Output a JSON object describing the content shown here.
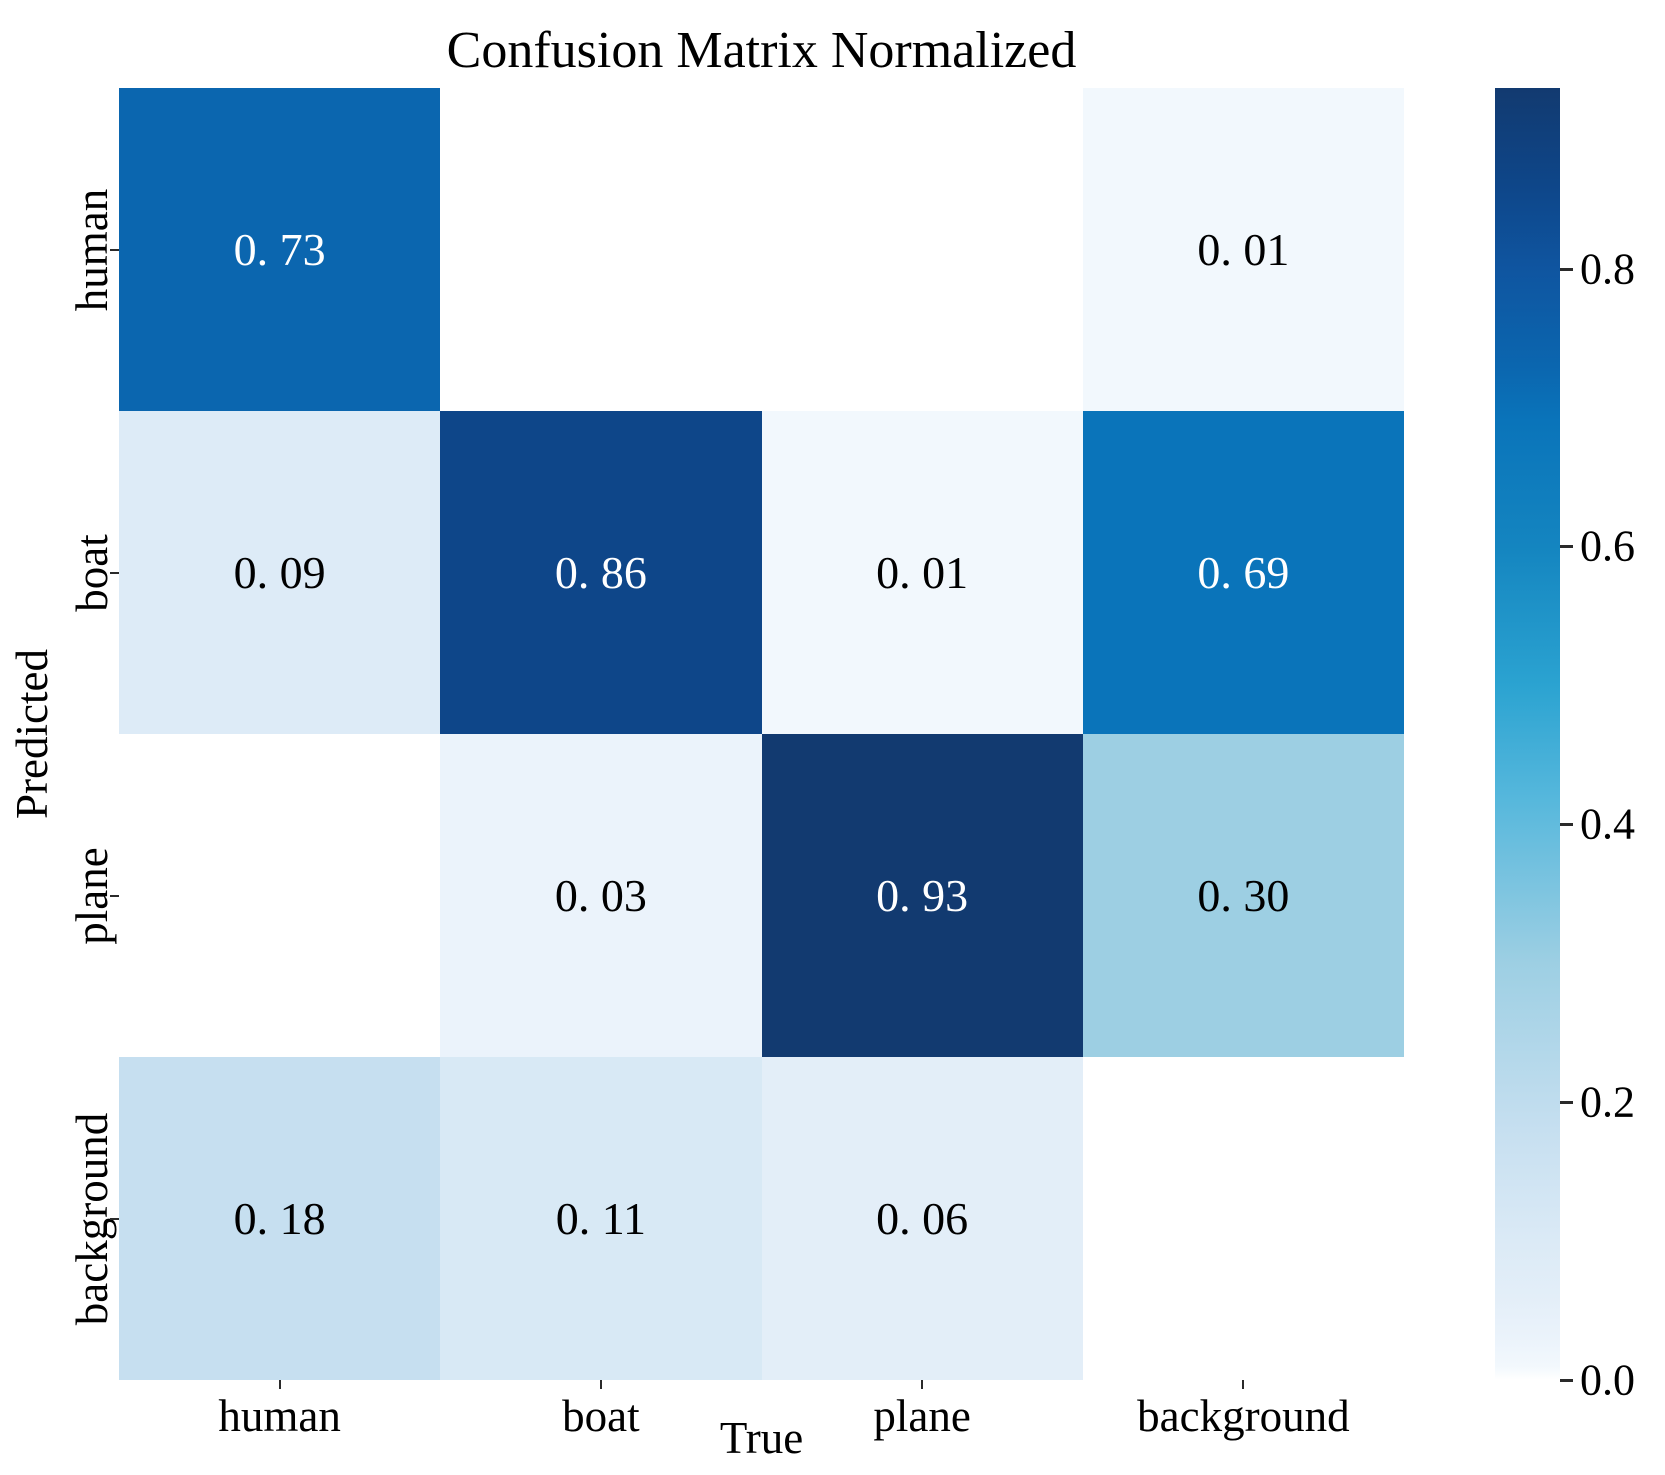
{
  "title": "Confusion Matrix Normalized",
  "chart_data": {
    "type": "heatmap",
    "title": "Confusion Matrix Normalized",
    "xlabel": "True",
    "ylabel": "Predicted",
    "x_categories": [
      "human",
      "boat",
      "plane",
      "background"
    ],
    "y_categories": [
      "human",
      "boat",
      "plane",
      "background"
    ],
    "matrix_values": [
      [
        0.73,
        0,
        0,
        0.01
      ],
      [
        0.09,
        0.86,
        0.01,
        0.69
      ],
      [
        0,
        0.03,
        0.93,
        0.3
      ],
      [
        0.18,
        0.11,
        0.06,
        0
      ]
    ],
    "matrix_labels": [
      [
        "0. 73",
        "",
        "",
        "0. 01"
      ],
      [
        "0. 09",
        "0. 86",
        "0. 01",
        "0. 69"
      ],
      [
        "",
        "0. 03",
        "0. 93",
        "0. 30"
      ],
      [
        "0. 18",
        "0. 11",
        "0. 06",
        ""
      ]
    ],
    "colorbar": {
      "tick_labels": [
        "0.8",
        "0.6",
        "0.4",
        "0.2",
        "0.0"
      ],
      "tick_values": [
        0.8,
        0.6,
        0.4,
        0.2,
        0.0
      ],
      "vmin": 0.0,
      "vmax": 0.93
    },
    "colormap_stops": [
      {
        "v": 0.0,
        "c": "#ffffff"
      },
      {
        "v": 0.01,
        "c": "#f2f8fd"
      },
      {
        "v": 0.03,
        "c": "#ebf3fb"
      },
      {
        "v": 0.06,
        "c": "#e3eef8"
      },
      {
        "v": 0.1,
        "c": "#dbeaf6"
      },
      {
        "v": 0.18,
        "c": "#c6dff0"
      },
      {
        "v": 0.3,
        "c": "#9dcfe3"
      },
      {
        "v": 0.42,
        "c": "#55b7dc"
      },
      {
        "v": 0.5,
        "c": "#2ba3d1"
      },
      {
        "v": 0.6,
        "c": "#1485c0"
      },
      {
        "v": 0.69,
        "c": "#0a74ba"
      },
      {
        "v": 0.73,
        "c": "#0b66af"
      },
      {
        "v": 0.8,
        "c": "#0f55a0"
      },
      {
        "v": 0.86,
        "c": "#0e4689"
      },
      {
        "v": 0.93,
        "c": "#123a70"
      }
    ],
    "text_colors": {
      "dark_cell_text": "#ffffff",
      "light_cell_text": "#000000",
      "white_text_threshold": 0.6,
      "axis_text": "#000000"
    }
  }
}
